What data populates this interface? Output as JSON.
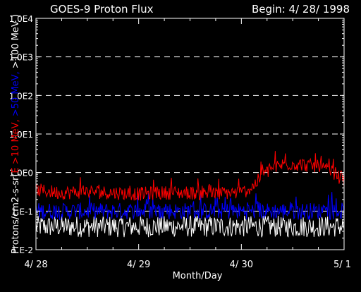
{
  "chart_data": {
    "type": "line",
    "title": "GOES-9 Proton Flux",
    "subtitle": "Begin: 4/ 28/ 1998",
    "xlabel": "Month/Day",
    "ylabel_parts": [
      {
        "text": "Protons/cm2-s-sr(",
        "color": "#ffffff"
      },
      {
        "text": "E >10 MeV, ",
        "color": "#ff0000"
      },
      {
        "text": ">50 MeV, ",
        "color": "#0000ff"
      },
      {
        "text": ">100 MeV )",
        "color": "#ffffff"
      }
    ],
    "y_scale": "log",
    "ylim": [
      0.01,
      10000
    ],
    "y_ticks": [
      {
        "value": 0.01,
        "label": "1.E-2"
      },
      {
        "value": 0.1,
        "label": "1.E-1"
      },
      {
        "value": 1,
        "label": "1.0E0"
      },
      {
        "value": 10,
        "label": "1.0E1"
      },
      {
        "value": 100,
        "label": "1.0E2"
      },
      {
        "value": 1000,
        "label": "1.0E3"
      },
      {
        "value": 10000,
        "label": "1.0E4"
      }
    ],
    "gridlines_y": [
      0.1,
      1,
      10,
      100,
      1000
    ],
    "x_ticks": [
      {
        "value": 0,
        "label": "4/ 28"
      },
      {
        "value": 1,
        "label": "4/ 29"
      },
      {
        "value": 2,
        "label": "4/ 30"
      },
      {
        "value": 3,
        "label": "5/ 1"
      }
    ],
    "xlim": [
      0,
      3
    ],
    "series": [
      {
        "color": "#ff0000",
        "x": [
          0,
          0.25,
          0.5,
          0.75,
          1.0,
          1.25,
          1.5,
          1.75,
          1.85,
          2.0,
          2.1,
          2.2,
          2.3,
          2.4,
          2.5,
          2.6,
          2.75,
          2.9,
          3.0
        ],
        "y": [
          0.35,
          0.3,
          0.32,
          0.3,
          0.28,
          0.3,
          0.3,
          0.28,
          0.3,
          0.3,
          0.4,
          0.8,
          1.3,
          1.6,
          1.7,
          1.6,
          1.4,
          1.0,
          0.6
        ]
      },
      {
        "color": "#0000ff",
        "x": [
          0,
          0.5,
          1.0,
          1.5,
          2.0,
          2.5,
          3.0
        ],
        "y": [
          0.1,
          0.1,
          0.1,
          0.1,
          0.1,
          0.1,
          0.1
        ]
      },
      {
        "color": "#ffffff",
        "x": [
          0,
          0.5,
          1.0,
          1.5,
          2.0,
          2.5,
          3.0
        ],
        "y": [
          0.04,
          0.04,
          0.04,
          0.04,
          0.04,
          0.04,
          0.04
        ]
      }
    ]
  }
}
